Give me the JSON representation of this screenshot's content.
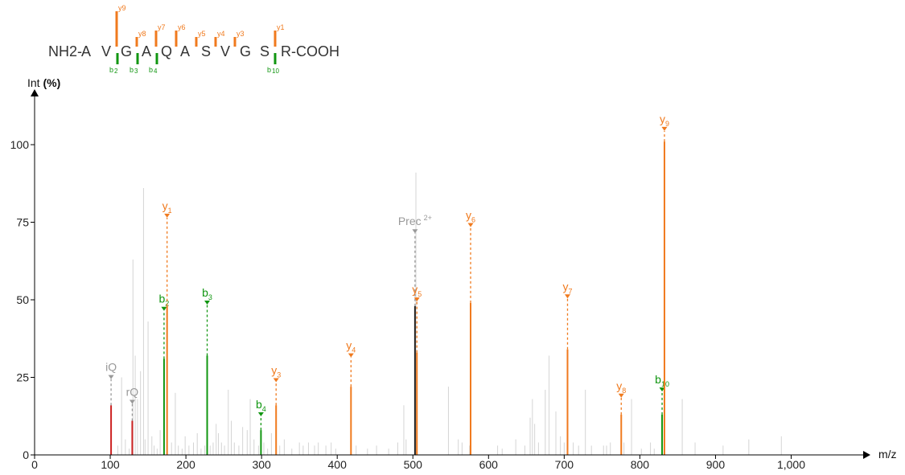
{
  "colors": {
    "y_ion": "#f07a1e",
    "b_ion": "#119611",
    "other": "#999999",
    "immonium": "#cc2222",
    "precursor_peak": "#222222",
    "background_peak": "#d4d4d4",
    "axis": "#000000"
  },
  "peptide": {
    "prefix": "NH2-",
    "suffix": "R-COOH",
    "residues": [
      "A",
      "V",
      "G",
      "A",
      "Q",
      "A",
      "S",
      "V",
      "G",
      "S"
    ],
    "y_fragments": [
      {
        "label": "y9",
        "after_residue": 1,
        "strength": "large"
      },
      {
        "label": "y8",
        "after_residue": 2,
        "strength": "small"
      },
      {
        "label": "y7",
        "after_residue": 3,
        "strength": "medium"
      },
      {
        "label": "y6",
        "after_residue": 4,
        "strength": "medium"
      },
      {
        "label": "y5",
        "after_residue": 5,
        "strength": "small"
      },
      {
        "label": "y4",
        "after_residue": 6,
        "strength": "small"
      },
      {
        "label": "y3",
        "after_residue": 7,
        "strength": "small"
      },
      {
        "label": "y1",
        "after_residue": 9,
        "strength": "medium"
      }
    ],
    "b_fragments": [
      {
        "label": "b2",
        "main": "b",
        "sub": "2",
        "after_residue": 1
      },
      {
        "label": "b3",
        "main": "b",
        "sub": "3",
        "after_residue": 2
      },
      {
        "label": "b4",
        "main": "b",
        "sub": "4",
        "after_residue": 3
      },
      {
        "label": "b10",
        "main": "b",
        "sub": "10",
        "after_residue": 9
      }
    ]
  },
  "chart_data": {
    "type": "bar",
    "title": "",
    "xlabel": "m/z",
    "ylabel": "Int (%)",
    "xlim": [
      0,
      1100
    ],
    "ylim": [
      0,
      115
    ],
    "x_ticks": [
      0,
      100,
      200,
      300,
      400,
      500,
      600,
      700,
      800,
      900,
      1000
    ],
    "x_tick_labels": [
      "0",
      "100",
      "200",
      "300",
      "400",
      "500",
      "600",
      "700",
      "800",
      "900",
      "1,000"
    ],
    "y_ticks": [
      0,
      25,
      50,
      75,
      100
    ],
    "y_tick_labels": [
      "0",
      "25",
      "50",
      "75",
      "100"
    ],
    "annotated_peaks": [
      {
        "name": "iQ",
        "main": "iQ",
        "sub": "",
        "sup": "",
        "type": "immonium",
        "mz": 101.1,
        "intensity": 16,
        "label_height": 26
      },
      {
        "name": "rQ",
        "main": "rQ",
        "sub": "",
        "sup": "",
        "type": "immonium",
        "mz": 129.1,
        "intensity": 11,
        "label_height": 18
      },
      {
        "name": "b2",
        "main": "b",
        "sub": "2",
        "sup": "",
        "type": "b",
        "mz": 171.1,
        "intensity": 31,
        "label_height": 48
      },
      {
        "name": "y1",
        "main": "y",
        "sub": "1",
        "sup": "",
        "type": "y",
        "mz": 175.1,
        "intensity": 48,
        "label_height": 78
      },
      {
        "name": "b3",
        "main": "b",
        "sub": "3",
        "sup": "",
        "type": "b",
        "mz": 228.1,
        "intensity": 32,
        "label_height": 50
      },
      {
        "name": "b4",
        "main": "b",
        "sub": "4",
        "sup": "",
        "type": "b",
        "mz": 299.2,
        "intensity": 8,
        "label_height": 14
      },
      {
        "name": "y3",
        "main": "y",
        "sub": "3",
        "sup": "",
        "type": "y",
        "mz": 319.2,
        "intensity": 16,
        "label_height": 25
      },
      {
        "name": "y4",
        "main": "y",
        "sub": "4",
        "sup": "",
        "type": "y",
        "mz": 418.2,
        "intensity": 22,
        "label_height": 33
      },
      {
        "name": "Prec 2+",
        "main": "Prec",
        "sub": "",
        "sup": "2+",
        "type": "other",
        "mz": 502.8,
        "intensity": 48,
        "label_height": 73
      },
      {
        "name": "y5",
        "main": "y",
        "sub": "5",
        "sup": "",
        "type": "y",
        "mz": 505.3,
        "intensity": 33,
        "label_height": 51
      },
      {
        "name": "y6",
        "main": "y",
        "sub": "6",
        "sup": "",
        "type": "y",
        "mz": 576.3,
        "intensity": 49,
        "label_height": 75
      },
      {
        "name": "y7",
        "main": "y",
        "sub": "7",
        "sup": "",
        "type": "y",
        "mz": 704.4,
        "intensity": 34,
        "label_height": 52
      },
      {
        "name": "y8",
        "main": "y",
        "sub": "8",
        "sup": "",
        "type": "y",
        "mz": 775.4,
        "intensity": 13,
        "label_height": 20
      },
      {
        "name": "b10",
        "main": "b",
        "sub": "10",
        "sup": "",
        "type": "b",
        "mz": 829.4,
        "intensity": 13,
        "label_height": 22
      },
      {
        "name": "y9",
        "main": "y",
        "sub": "9",
        "sup": "",
        "type": "y",
        "mz": 832.5,
        "intensity": 101,
        "label_height": 106
      }
    ],
    "unannotated_peaks": [
      [
        110,
        3
      ],
      [
        115,
        25
      ],
      [
        120,
        5
      ],
      [
        125,
        2
      ],
      [
        130,
        63
      ],
      [
        133,
        32
      ],
      [
        136,
        18
      ],
      [
        140,
        27
      ],
      [
        144,
        86
      ],
      [
        146,
        5
      ],
      [
        150,
        43
      ],
      [
        155,
        6
      ],
      [
        158,
        3
      ],
      [
        162,
        2
      ],
      [
        166,
        8
      ],
      [
        181,
        4
      ],
      [
        186,
        20
      ],
      [
        190,
        3
      ],
      [
        195,
        2
      ],
      [
        199,
        6
      ],
      [
        204,
        3
      ],
      [
        210,
        4
      ],
      [
        215,
        7
      ],
      [
        220,
        2
      ],
      [
        225,
        3
      ],
      [
        232,
        3
      ],
      [
        236,
        4
      ],
      [
        240,
        10
      ],
      [
        243,
        7
      ],
      [
        247,
        4
      ],
      [
        251,
        3
      ],
      [
        256,
        21
      ],
      [
        260,
        11
      ],
      [
        264,
        4
      ],
      [
        270,
        3
      ],
      [
        275,
        9
      ],
      [
        281,
        8
      ],
      [
        285,
        18
      ],
      [
        290,
        5
      ],
      [
        296,
        3
      ],
      [
        303,
        4
      ],
      [
        308,
        2
      ],
      [
        313,
        7
      ],
      [
        324,
        3
      ],
      [
        330,
        5
      ],
      [
        340,
        2
      ],
      [
        350,
        4
      ],
      [
        355,
        3
      ],
      [
        362,
        4
      ],
      [
        370,
        3
      ],
      [
        375,
        4
      ],
      [
        385,
        3
      ],
      [
        392,
        4
      ],
      [
        398,
        2
      ],
      [
        425,
        3
      ],
      [
        440,
        2
      ],
      [
        452,
        3
      ],
      [
        468,
        2
      ],
      [
        480,
        4
      ],
      [
        488,
        16
      ],
      [
        491,
        5
      ],
      [
        504,
        91
      ],
      [
        547,
        22
      ],
      [
        560,
        5
      ],
      [
        565,
        4
      ],
      [
        575,
        3
      ],
      [
        612,
        3
      ],
      [
        618,
        2
      ],
      [
        636,
        5
      ],
      [
        648,
        3
      ],
      [
        655,
        12
      ],
      [
        658,
        18
      ],
      [
        661,
        10
      ],
      [
        666,
        4
      ],
      [
        675,
        21
      ],
      [
        680,
        32
      ],
      [
        689,
        14
      ],
      [
        695,
        6
      ],
      [
        700,
        4
      ],
      [
        712,
        4
      ],
      [
        719,
        3
      ],
      [
        728,
        21
      ],
      [
        736,
        3
      ],
      [
        752,
        3
      ],
      [
        756,
        3
      ],
      [
        761,
        4
      ],
      [
        779,
        4
      ],
      [
        789,
        18
      ],
      [
        802,
        2
      ],
      [
        814,
        4
      ],
      [
        819,
        2
      ],
      [
        856,
        18
      ],
      [
        873,
        4
      ],
      [
        910,
        3
      ],
      [
        944,
        5
      ],
      [
        987,
        6
      ]
    ]
  }
}
